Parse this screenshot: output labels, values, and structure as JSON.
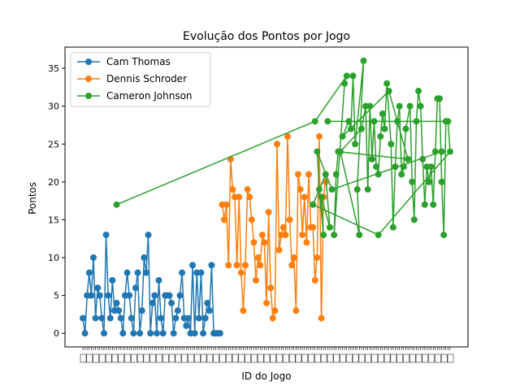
{
  "chart_data": {
    "type": "line",
    "title": "Evolução dos Pontos por Jogo",
    "xlabel": "ID do Jogo",
    "ylabel": "Pontos",
    "xlim": [
      0,
      166
    ],
    "ylim": [
      -1.8,
      37.8
    ],
    "yticks": [
      0,
      5,
      10,
      15,
      20,
      25,
      30,
      35
    ],
    "x_tick_labels_note": "overlapping game IDs, illegible",
    "grid": false,
    "legend_position": "top-left",
    "series": [
      {
        "name": "Cam Thomas",
        "color": "#1f77b4",
        "points": [
          [
            0,
            2
          ],
          [
            1,
            0
          ],
          [
            2,
            5
          ],
          [
            3,
            8
          ],
          [
            4,
            5
          ],
          [
            5,
            10
          ],
          [
            6,
            2
          ],
          [
            7,
            6
          ],
          [
            8,
            5
          ],
          [
            9,
            2
          ],
          [
            10,
            0
          ],
          [
            11,
            13
          ],
          [
            12,
            5
          ],
          [
            13,
            2
          ],
          [
            14,
            7
          ],
          [
            15,
            3
          ],
          [
            16,
            4
          ],
          [
            17,
            3
          ],
          [
            18,
            2
          ],
          [
            19,
            0
          ],
          [
            20,
            5
          ],
          [
            21,
            8
          ],
          [
            22,
            5
          ],
          [
            23,
            2
          ],
          [
            24,
            0
          ],
          [
            25,
            6
          ],
          [
            26,
            8
          ],
          [
            27,
            0
          ],
          [
            28,
            3
          ],
          [
            29,
            10
          ],
          [
            30,
            8
          ],
          [
            31,
            13
          ],
          [
            32,
            0
          ],
          [
            33,
            4
          ],
          [
            34,
            5
          ],
          [
            35,
            0
          ],
          [
            36,
            7
          ],
          [
            37,
            2
          ],
          [
            38,
            0
          ],
          [
            39,
            5
          ],
          [
            40,
            5
          ],
          [
            41,
            5
          ],
          [
            42,
            4
          ],
          [
            43,
            0
          ],
          [
            44,
            2
          ],
          [
            45,
            3
          ],
          [
            46,
            5
          ],
          [
            47,
            8
          ],
          [
            48,
            2
          ],
          [
            49,
            1
          ],
          [
            50,
            2
          ],
          [
            51,
            0
          ],
          [
            52,
            9
          ],
          [
            53,
            0
          ],
          [
            54,
            8
          ],
          [
            55,
            2
          ],
          [
            56,
            8
          ],
          [
            57,
            0
          ],
          [
            58,
            2
          ],
          [
            59,
            4
          ],
          [
            60,
            3
          ],
          [
            61,
            9
          ],
          [
            62,
            0
          ],
          [
            63,
            0
          ],
          [
            64,
            0
          ],
          [
            65,
            0
          ]
        ]
      },
      {
        "name": "Dennis Schroder",
        "color": "#ff7f0e",
        "points": [
          [
            66,
            17
          ],
          [
            67,
            15
          ],
          [
            68,
            17
          ],
          [
            69,
            9
          ],
          [
            70,
            23
          ],
          [
            71,
            19
          ],
          [
            72,
            18
          ],
          [
            73,
            9
          ],
          [
            74,
            18
          ],
          [
            75,
            8
          ],
          [
            76,
            3
          ],
          [
            77,
            9
          ],
          [
            78,
            19
          ],
          [
            79,
            18
          ],
          [
            80,
            15
          ],
          [
            81,
            12
          ],
          [
            82,
            7
          ],
          [
            83,
            10
          ],
          [
            84,
            9
          ],
          [
            85,
            13
          ],
          [
            86,
            12
          ],
          [
            87,
            4
          ],
          [
            88,
            16
          ],
          [
            89,
            6
          ],
          [
            90,
            2
          ],
          [
            91,
            3
          ],
          [
            92,
            25
          ],
          [
            93,
            11
          ],
          [
            94,
            13
          ],
          [
            95,
            14
          ],
          [
            96,
            13
          ],
          [
            97,
            26
          ],
          [
            98,
            15
          ],
          [
            99,
            9
          ],
          [
            100,
            10
          ],
          [
            101,
            3
          ],
          [
            102,
            21
          ],
          [
            103,
            19
          ],
          [
            104,
            13
          ],
          [
            105,
            18
          ],
          [
            106,
            12
          ],
          [
            107,
            21
          ],
          [
            108,
            14
          ],
          [
            109,
            14
          ],
          [
            110,
            7
          ],
          [
            111,
            10
          ],
          [
            112,
            26
          ],
          [
            113,
            2
          ],
          [
            114,
            18
          ],
          [
            115,
            20
          ]
        ]
      },
      {
        "name": "Cameron Johnson",
        "color": "#2ca02c",
        "points": [
          [
            16,
            17
          ],
          [
            110,
            28
          ],
          [
            125,
            34
          ],
          [
            124,
            33
          ],
          [
            119,
            13
          ],
          [
            120,
            21
          ],
          [
            121,
            24
          ],
          [
            154,
            23
          ],
          [
            145,
            32
          ],
          [
            123,
            26
          ],
          [
            126,
            28
          ],
          [
            127,
            27
          ],
          [
            128,
            34
          ],
          [
            129,
            25
          ],
          [
            133,
            36
          ],
          [
            130,
            19
          ],
          [
            131,
            13
          ],
          [
            122,
            24
          ],
          [
            132,
            27
          ],
          [
            134,
            30
          ],
          [
            135,
            19
          ],
          [
            136,
            30
          ],
          [
            137,
            23
          ],
          [
            138,
            28
          ],
          [
            139,
            22
          ],
          [
            140,
            21
          ],
          [
            141,
            26
          ],
          [
            142,
            29
          ],
          [
            143,
            27
          ],
          [
            144,
            33
          ],
          [
            146,
            25
          ],
          [
            147,
            14
          ],
          [
            148,
            22
          ],
          [
            149,
            28
          ],
          [
            150,
            30
          ],
          [
            151,
            21
          ],
          [
            152,
            22
          ],
          [
            153,
            27
          ],
          [
            155,
            30
          ],
          [
            156,
            20
          ],
          [
            157,
            15
          ],
          [
            158,
            28
          ],
          [
            159,
            32
          ],
          [
            160,
            30
          ],
          [
            161,
            23
          ],
          [
            162,
            17
          ],
          [
            163,
            22
          ],
          [
            164,
            20
          ],
          [
            165,
            22
          ],
          [
            166,
            17
          ],
          [
            167,
            24
          ],
          [
            168,
            31
          ],
          [
            169,
            31
          ],
          [
            170,
            20
          ],
          [
            171,
            13
          ],
          [
            172,
            28
          ],
          [
            116,
            28
          ],
          [
            173,
            28
          ],
          [
            174,
            24
          ],
          [
            140,
            13
          ],
          [
            109,
            17
          ],
          [
            115,
            21
          ],
          [
            117,
            14
          ],
          [
            113,
            18
          ],
          [
            114,
            13
          ],
          [
            112,
            19
          ],
          [
            111,
            24
          ],
          [
            118,
            19
          ],
          [
            170,
            24
          ]
        ]
      }
    ]
  }
}
